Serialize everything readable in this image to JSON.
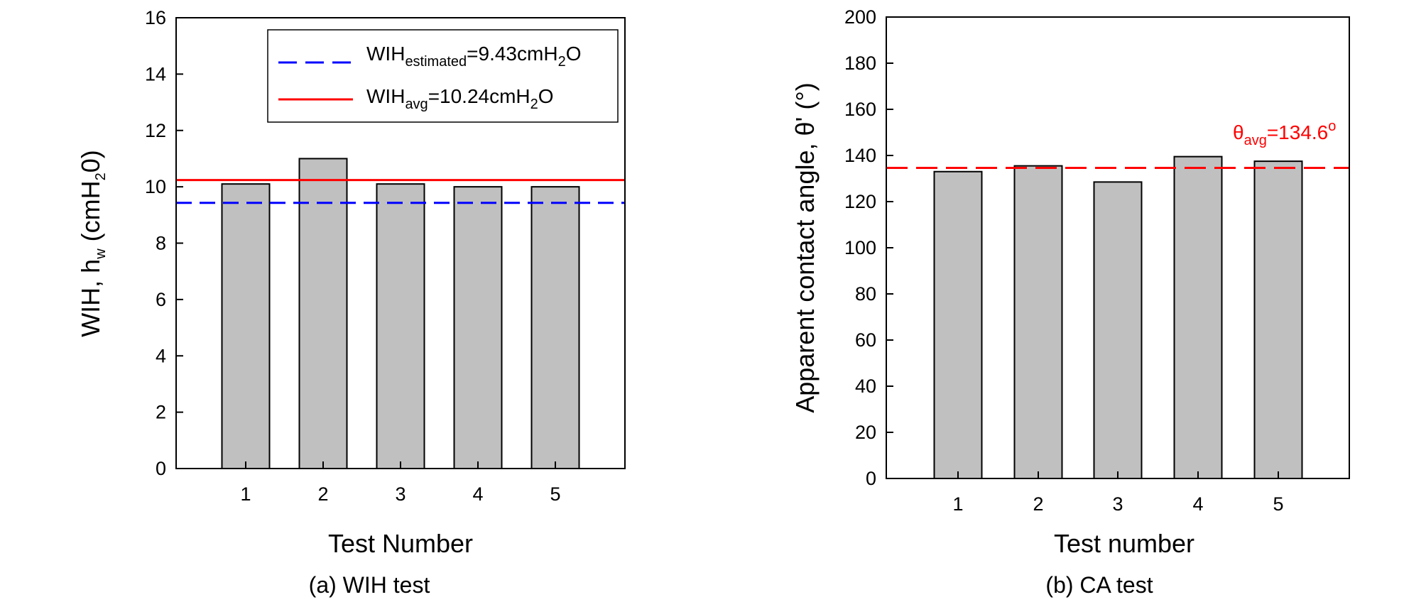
{
  "chart_data": [
    {
      "type": "bar",
      "categories": [
        "1",
        "2",
        "3",
        "4",
        "5"
      ],
      "values": [
        10.1,
        11.0,
        10.1,
        10.0,
        10.0
      ],
      "xlabel": "Test Number",
      "ylabel": {
        "main": "WIH, h",
        "sub1": "w",
        "mid": " (cmH",
        "sub2": "2",
        "end": "0)"
      },
      "ylim": [
        0,
        16
      ],
      "yticks": [
        "0",
        "2",
        "4",
        "6",
        "8",
        "10",
        "12",
        "14",
        "16"
      ],
      "caption": "(a)  WIH  test",
      "bar_color": "#c0c0c0",
      "reference_lines": [
        {
          "value": 9.43,
          "style": "dashed",
          "color": "#0000ff",
          "label": {
            "main": "WIH",
            "sub": "estimated",
            "rest": "=9.43cmH",
            "sub2": "2",
            "end": "O"
          }
        },
        {
          "value": 10.24,
          "style": "solid",
          "color": "#ff0000",
          "label": {
            "main": "WIH",
            "sub": "avg",
            "rest": "=10.24cmH",
            "sub2": "2",
            "end": "O"
          }
        }
      ],
      "legend_position": "top-right"
    },
    {
      "type": "bar",
      "categories": [
        "1",
        "2",
        "3",
        "4",
        "5"
      ],
      "values": [
        133,
        135.5,
        128.5,
        139.5,
        137.5
      ],
      "xlabel": "Test number",
      "ylabel": {
        "main": "Apparent contact angle, θ' (°)"
      },
      "ylim": [
        0,
        200
      ],
      "yticks": [
        "0",
        "20",
        "40",
        "60",
        "80",
        "100",
        "120",
        "140",
        "160",
        "180",
        "200"
      ],
      "caption": "(b)  CA  test",
      "bar_color": "#c0c0c0",
      "reference_lines": [
        {
          "value": 134.6,
          "style": "dashed",
          "color": "#ff0000",
          "label": {
            "main": "θ",
            "sub": "avg",
            "rest": "=134.6",
            "sup": "o"
          }
        }
      ]
    }
  ]
}
